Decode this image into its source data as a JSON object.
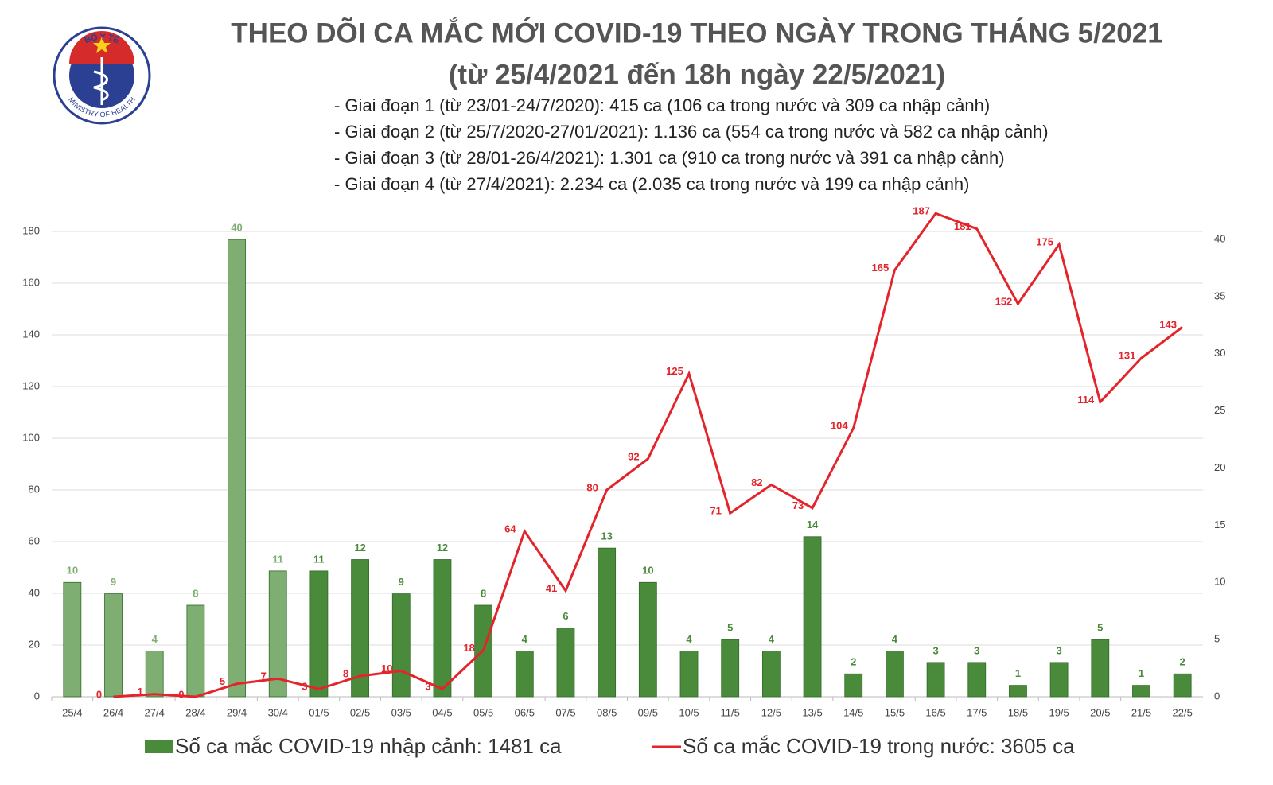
{
  "logo": {
    "top": "BỘ Y TẾ",
    "bottom": "MINISTRY OF HEALTH"
  },
  "chart_data": {
    "type": "combo",
    "title": "THEO DÕI CA MẮC MỚI COVID-19 THEO NGÀY TRONG THÁNG 5/2021",
    "subtitle": "(từ 25/4/2021 đến 18h ngày 22/5/2021)",
    "annotations": [
      "- Giai đoạn 1 (từ 23/01-24/7/2020): 415 ca (106 ca trong nước và 309 ca nhập cảnh)",
      "- Giai đoạn 2 (từ 25/7/2020-27/01/2021): 1.136 ca (554 ca trong nước và 582 ca nhập cảnh)",
      "- Giai đoạn 3 (từ 28/01-26/4/2021): 1.301 ca (910 ca trong nước và 391 ca nhập cảnh)",
      "- Giai đoạn 4 (từ 27/4/2021): 2.234 ca (2.035 ca trong nước và 199 ca nhập cảnh)"
    ],
    "categories": [
      "25/4",
      "26/4",
      "27/4",
      "28/4",
      "29/4",
      "30/4",
      "01/5",
      "02/5",
      "03/5",
      "04/5",
      "05/5",
      "06/5",
      "07/5",
      "08/5",
      "09/5",
      "10/5",
      "11/5",
      "12/5",
      "13/5",
      "14/5",
      "15/5",
      "16/5",
      "17/5",
      "18/5",
      "19/5",
      "20/5",
      "21/5",
      "22/5"
    ],
    "series": [
      {
        "name": "Số ca mắc COVID-19 nhập cảnh: 1481 ca",
        "type": "bar",
        "axis": "y2",
        "color": "#4a8a3b",
        "colors": [
          "#7fae73",
          "#7fae73",
          "#7fae73",
          "#7fae73",
          "#7fae73",
          "#7fae73",
          "#4a8a3b",
          "#4a8a3b",
          "#4a8a3b",
          "#4a8a3b",
          "#4a8a3b",
          "#4a8a3b",
          "#4a8a3b",
          "#4a8a3b",
          "#4a8a3b",
          "#4a8a3b",
          "#4a8a3b",
          "#4a8a3b",
          "#4a8a3b",
          "#4a8a3b",
          "#4a8a3b",
          "#4a8a3b",
          "#4a8a3b",
          "#4a8a3b",
          "#4a8a3b",
          "#4a8a3b",
          "#4a8a3b",
          "#4a8a3b"
        ],
        "values": [
          10,
          9,
          4,
          8,
          40,
          11,
          11,
          12,
          9,
          12,
          8,
          4,
          6,
          13,
          10,
          4,
          5,
          4,
          14,
          2,
          4,
          3,
          3,
          1,
          3,
          5,
          1,
          2
        ]
      },
      {
        "name": "Số ca mắc COVID-19 trong nước: 3605 ca",
        "type": "line",
        "color": "#e3242b",
        "values": [
          null,
          0,
          1,
          0,
          5,
          7,
          3,
          8,
          10,
          3,
          18,
          64,
          41,
          80,
          92,
          125,
          71,
          82,
          73,
          104,
          165,
          187,
          181,
          152,
          175,
          114,
          131,
          143
        ]
      }
    ],
    "ylim": [
      0,
      180
    ],
    "yticks": [
      0,
      20,
      40,
      60,
      80,
      100,
      120,
      140,
      160,
      180
    ],
    "y2lim": [
      0,
      40.7
    ],
    "y2ticks": [
      0,
      5,
      10,
      15,
      20,
      25,
      30,
      35,
      40
    ],
    "grid": true
  }
}
